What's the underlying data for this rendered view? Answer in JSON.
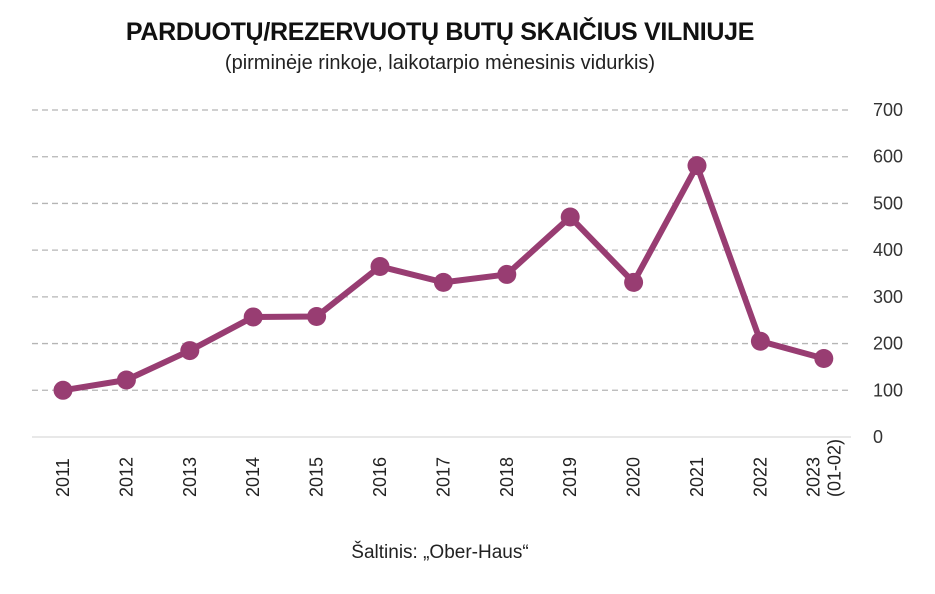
{
  "chart_data": {
    "type": "line",
    "title": "PARDUOTŲ/REZERVUOTŲ BUTŲ SKAIČIUS VILNIUJE",
    "subtitle": "(pirminėje rinkoje, laikotarpio mėnesinis vidurkis)",
    "categories": [
      [
        "2011"
      ],
      [
        "2012"
      ],
      [
        "2013"
      ],
      [
        "2014"
      ],
      [
        "2015"
      ],
      [
        "2016"
      ],
      [
        "2017"
      ],
      [
        "2018"
      ],
      [
        "2019"
      ],
      [
        "2020"
      ],
      [
        "2021"
      ],
      [
        "2022"
      ],
      [
        "2023",
        "(01-02)"
      ]
    ],
    "series": [
      {
        "values": [
          100,
          122,
          185,
          257,
          258,
          365,
          331,
          348,
          471,
          331,
          581,
          205,
          168
        ]
      }
    ],
    "ylim": [
      0,
      700
    ],
    "yticks": [
      0,
      100,
      200,
      300,
      400,
      500,
      600,
      700
    ],
    "grid": true,
    "y_axis_side": "right",
    "series_color": "#983d72",
    "grid_color": "#b5b5b5",
    "source": "Šaltinis: „Ober-Haus“"
  }
}
